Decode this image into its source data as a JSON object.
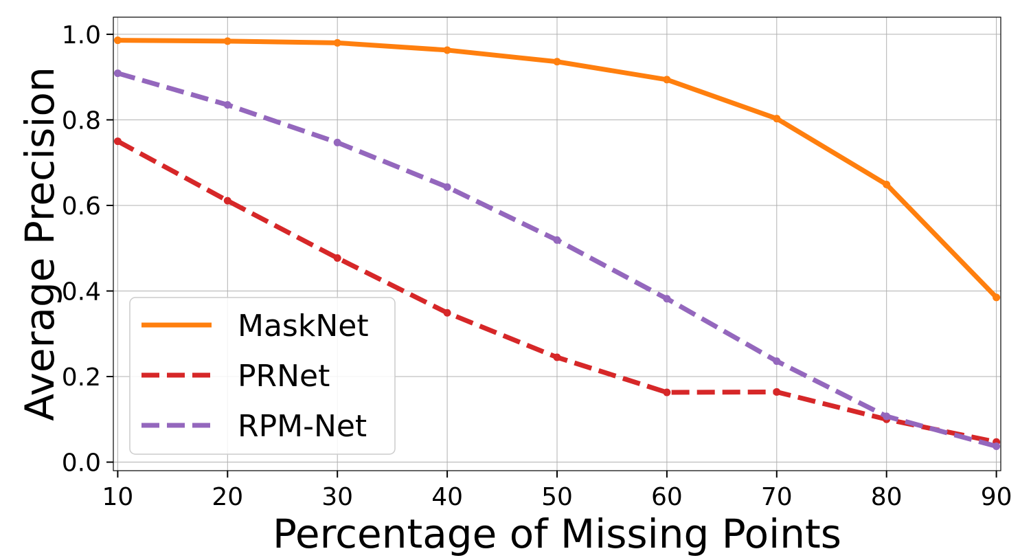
{
  "chart_data": {
    "type": "line",
    "title": "",
    "xlabel": "Percentage of Missing Points",
    "ylabel": "Average Precision",
    "x": [
      10,
      20,
      30,
      40,
      50,
      60,
      70,
      80,
      90
    ],
    "xlim": [
      9.6,
      90.4
    ],
    "ylim": [
      -0.02,
      1.04
    ],
    "x_ticks": [
      10,
      20,
      30,
      40,
      50,
      60,
      70,
      80,
      90
    ],
    "x_tick_labels": [
      "10",
      "20",
      "30",
      "40",
      "50",
      "60",
      "70",
      "80",
      "90"
    ],
    "y_ticks": [
      0.0,
      0.2,
      0.4,
      0.6,
      0.8,
      1.0
    ],
    "y_tick_labels": [
      "0.0",
      "0.2",
      "0.4",
      "0.6",
      "0.8",
      "1.0"
    ],
    "grid": true,
    "legend_position": "lower-left",
    "series": [
      {
        "name": "MaskNet",
        "color": "#ff7f0e",
        "line_style": "solid",
        "values": [
          0.986,
          0.984,
          0.98,
          0.963,
          0.936,
          0.894,
          0.803,
          0.649,
          0.385
        ]
      },
      {
        "name": "PRNet",
        "color": "#d62728",
        "line_style": "dashed",
        "values": [
          0.75,
          0.611,
          0.477,
          0.349,
          0.245,
          0.163,
          0.164,
          0.1,
          0.047
        ]
      },
      {
        "name": "RPM-Net",
        "color": "#9467bd",
        "line_style": "dashed",
        "values": [
          0.909,
          0.835,
          0.747,
          0.643,
          0.519,
          0.382,
          0.236,
          0.107,
          0.037
        ]
      }
    ]
  }
}
